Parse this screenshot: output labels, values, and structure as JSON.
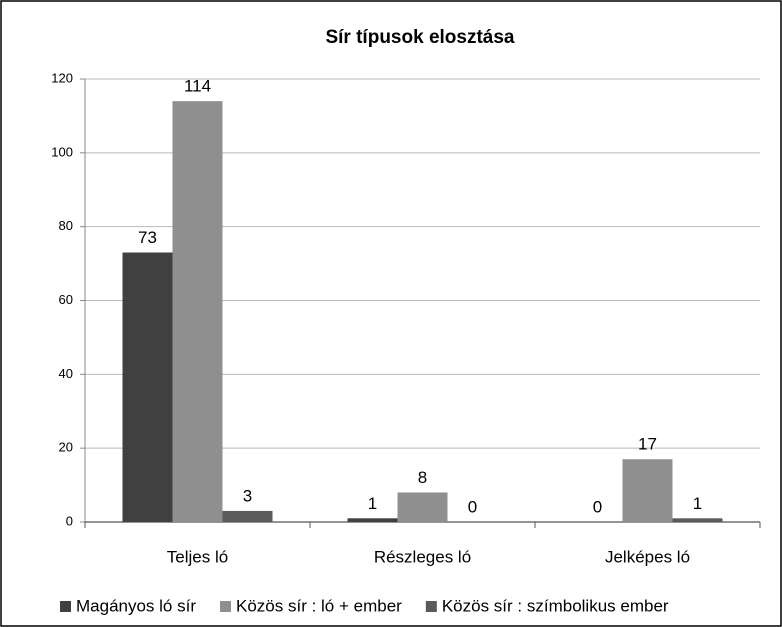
{
  "chart_data": {
    "type": "bar",
    "title": "Sír típusok elosztása",
    "categories": [
      "Teljes ló",
      "Részleges ló",
      "Jelképes ló"
    ],
    "series": [
      {
        "name": "Magányos ló sír",
        "color": "#404040",
        "values": [
          73,
          1,
          0
        ]
      },
      {
        "name": "Közös sír : ló + ember",
        "color": "#8f8f8f",
        "values": [
          114,
          8,
          17
        ]
      },
      {
        "name": "Közös sír : szímbolikus ember",
        "color": "#5a5a5a",
        "values": [
          3,
          0,
          1
        ]
      }
    ],
    "ylim": [
      0,
      120
    ],
    "yticks": [
      0,
      20,
      40,
      60,
      80,
      100,
      120
    ],
    "grid": true,
    "legend": "bottom"
  }
}
